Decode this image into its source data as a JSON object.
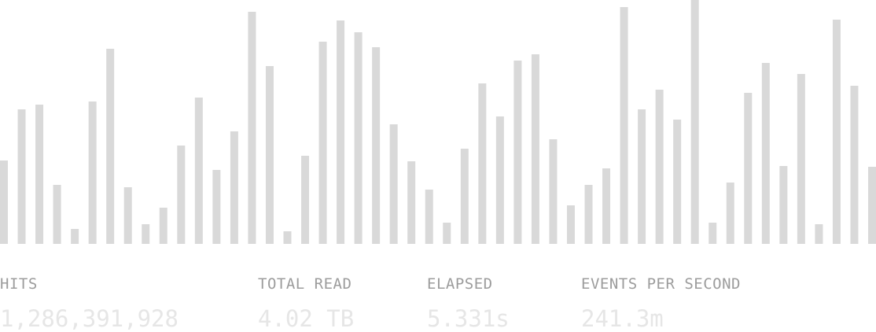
{
  "colors": {
    "bar": "#d9d9d9",
    "label": "#9c9c9c",
    "value": "#e6e6e6",
    "background": "#ffffff"
  },
  "chart_data": {
    "type": "bar",
    "title": "",
    "xlabel": "",
    "ylabel": "",
    "ylim": [
      0,
      310
    ],
    "grid": false,
    "values": [
      106,
      171,
      177,
      75,
      19,
      181,
      248,
      72,
      25,
      46,
      125,
      186,
      94,
      143,
      295,
      226,
      16,
      112,
      257,
      284,
      269,
      250,
      152,
      105,
      69,
      27,
      121,
      204,
      162,
      233,
      241,
      133,
      49,
      75,
      96,
      301,
      171,
      196,
      158,
      310,
      27,
      78,
      192,
      230,
      99,
      216,
      25,
      285,
      201,
      98
    ]
  },
  "stats": {
    "hits": {
      "label": "HITS",
      "value": "1,286,391,928"
    },
    "total_read": {
      "label": "TOTAL READ",
      "value": "4.02 TB"
    },
    "elapsed": {
      "label": "ELAPSED",
      "value": "5.331s"
    },
    "events_per_second": {
      "label": "EVENTS PER SECOND",
      "value": "241.3m"
    }
  }
}
